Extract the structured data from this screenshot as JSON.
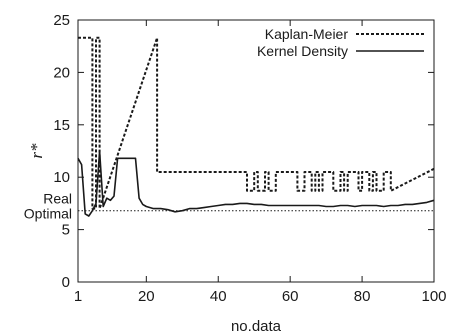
{
  "chart_data": {
    "type": "line",
    "xlabel": "no.data",
    "ylabel": "r*",
    "xlim": [
      1,
      100
    ],
    "ylim": [
      0,
      25
    ],
    "xticks": [
      {
        "value": 1,
        "label": "1"
      },
      {
        "value": 20,
        "label": "20"
      },
      {
        "value": 40,
        "label": "40"
      },
      {
        "value": 60,
        "label": "60"
      },
      {
        "value": 80,
        "label": "80"
      },
      {
        "value": 100,
        "label": "100"
      }
    ],
    "yticks": [
      {
        "value": 0,
        "label": "0"
      },
      {
        "value": 5,
        "label": "5"
      },
      {
        "value": 10,
        "label": "10"
      },
      {
        "value": 15,
        "label": "15"
      },
      {
        "value": 20,
        "label": "20"
      },
      {
        "value": 25,
        "label": "25"
      }
    ],
    "reference_line": {
      "value": 6.8,
      "label_line1": "Real",
      "label_line2": "Optimal"
    },
    "legend_position": "top-right",
    "grid": false,
    "series": [
      {
        "name": "Kaplan-Meier",
        "style": "dotted",
        "color": "#1a1a1a",
        "x": [
          1,
          5,
          5,
          6,
          6,
          7,
          7,
          23,
          23,
          48,
          48,
          50,
          50,
          51,
          51,
          53,
          53,
          54,
          54,
          56,
          56,
          62,
          62,
          64,
          64,
          66,
          66,
          67,
          67,
          68,
          68,
          69,
          69,
          72,
          72,
          74,
          74,
          75,
          75,
          76,
          76,
          79,
          79,
          80,
          80,
          82,
          82,
          83,
          83,
          84,
          84,
          86,
          86,
          88,
          88,
          100
        ],
        "y": [
          23.3,
          23.3,
          7.0,
          7.0,
          23.3,
          23.3,
          7.0,
          23.3,
          10.5,
          10.5,
          8.7,
          8.7,
          10.5,
          10.5,
          8.7,
          8.7,
          10.5,
          10.5,
          8.7,
          8.7,
          10.5,
          10.5,
          8.7,
          8.7,
          10.5,
          10.5,
          8.7,
          8.7,
          10.5,
          10.5,
          8.7,
          8.7,
          10.5,
          10.5,
          8.7,
          8.7,
          10.5,
          10.5,
          8.7,
          8.7,
          10.5,
          10.5,
          8.7,
          8.7,
          10.5,
          10.5,
          8.7,
          8.7,
          10.5,
          10.5,
          8.7,
          8.7,
          10.5,
          10.5,
          8.7,
          10.8
        ]
      },
      {
        "name": "Kernel Density",
        "style": "solid",
        "color": "#1a1a1a",
        "x": [
          1,
          2,
          3,
          4,
          5,
          6,
          7,
          8,
          9,
          10,
          11,
          12,
          13,
          14,
          15,
          16,
          17,
          18,
          19,
          20,
          22,
          24,
          26,
          28,
          30,
          32,
          34,
          36,
          38,
          40,
          42,
          44,
          46,
          48,
          50,
          52,
          54,
          56,
          58,
          60,
          62,
          64,
          66,
          68,
          70,
          72,
          74,
          76,
          78,
          80,
          82,
          84,
          86,
          88,
          90,
          92,
          94,
          96,
          98,
          100
        ],
        "y": [
          11.8,
          11.2,
          6.5,
          6.3,
          6.8,
          7.5,
          12.5,
          7.2,
          8.0,
          7.8,
          8.2,
          11.8,
          11.8,
          11.8,
          11.8,
          11.8,
          11.8,
          8.0,
          7.4,
          7.2,
          7.0,
          7.0,
          6.9,
          6.7,
          6.8,
          7.0,
          7.0,
          7.1,
          7.2,
          7.3,
          7.4,
          7.4,
          7.5,
          7.5,
          7.4,
          7.4,
          7.3,
          7.3,
          7.3,
          7.3,
          7.3,
          7.3,
          7.3,
          7.3,
          7.2,
          7.2,
          7.3,
          7.3,
          7.2,
          7.3,
          7.3,
          7.3,
          7.2,
          7.3,
          7.3,
          7.4,
          7.4,
          7.5,
          7.6,
          7.8
        ]
      }
    ]
  }
}
